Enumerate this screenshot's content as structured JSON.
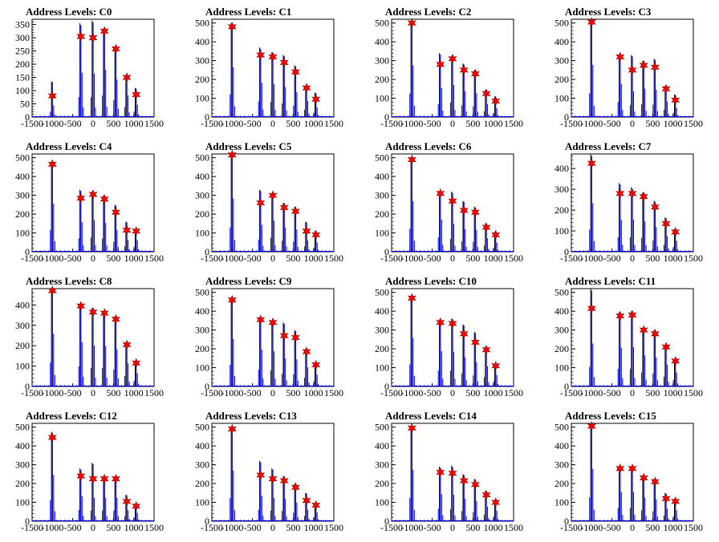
{
  "chart_data": [
    {
      "type": "bar",
      "title": "Address Levels: C0",
      "xlim": [
        -1500,
        1500
      ],
      "ylim": [
        0,
        370
      ],
      "yticks": [
        0,
        50,
        100,
        150,
        200,
        250,
        300,
        350
      ],
      "xticks": [
        -1500,
        -1000,
        -500,
        0,
        500,
        1000,
        1500
      ],
      "x": [
        -1000,
        -300,
        0,
        280,
        560,
        830,
        1060
      ],
      "values": [
        80,
        305,
        300,
        325,
        258,
        150,
        85
      ],
      "spike_max": [
        135,
        355,
        365,
        325,
        262,
        155,
        110
      ]
    },
    {
      "type": "bar",
      "title": "Address Levels: C1",
      "xlim": [
        -1500,
        1500
      ],
      "ylim": [
        0,
        520
      ],
      "yticks": [
        0,
        100,
        200,
        300,
        400,
        500
      ],
      "xticks": [
        -1500,
        -1000,
        -500,
        0,
        500,
        1000,
        1500
      ],
      "x": [
        -1000,
        -300,
        0,
        280,
        560,
        830,
        1060
      ],
      "values": [
        480,
        330,
        320,
        290,
        240,
        155,
        95
      ],
      "spike_max": [
        500,
        370,
        345,
        330,
        275,
        165,
        130
      ]
    },
    {
      "type": "bar",
      "title": "Address Levels: C2",
      "xlim": [
        -1500,
        1500
      ],
      "ylim": [
        0,
        520
      ],
      "yticks": [
        0,
        100,
        200,
        300,
        400,
        500
      ],
      "xticks": [
        -1500,
        -1000,
        -500,
        0,
        500,
        1000,
        1500
      ],
      "x": [
        -1000,
        -300,
        0,
        280,
        560,
        830,
        1060
      ],
      "values": [
        500,
        280,
        310,
        250,
        230,
        125,
        85
      ],
      "spike_max": [
        505,
        340,
        325,
        285,
        250,
        145,
        110
      ]
    },
    {
      "type": "bar",
      "title": "Address Levels: C3",
      "xlim": [
        -1500,
        1500
      ],
      "ylim": [
        0,
        520
      ],
      "yticks": [
        0,
        100,
        200,
        300,
        400,
        500
      ],
      "xticks": [
        -1500,
        -1000,
        -500,
        0,
        500,
        1000,
        1500
      ],
      "x": [
        -1000,
        -300,
        0,
        280,
        560,
        830,
        1060
      ],
      "values": [
        505,
        320,
        250,
        275,
        265,
        150,
        90
      ],
      "spike_max": [
        510,
        330,
        330,
        300,
        310,
        165,
        120
      ]
    },
    {
      "type": "bar",
      "title": "Address Levels: C4",
      "xlim": [
        -1500,
        1500
      ],
      "ylim": [
        0,
        520
      ],
      "yticks": [
        0,
        100,
        200,
        300,
        400,
        500
      ],
      "xticks": [
        -1500,
        -1000,
        -500,
        0,
        500,
        1000,
        1500
      ],
      "x": [
        -1000,
        -300,
        0,
        280,
        560,
        830,
        1060
      ],
      "values": [
        465,
        285,
        305,
        280,
        210,
        115,
        110
      ],
      "spike_max": [
        470,
        330,
        320,
        300,
        250,
        160,
        120
      ]
    },
    {
      "type": "bar",
      "title": "Address Levels: C5",
      "xlim": [
        -1500,
        1500
      ],
      "ylim": [
        0,
        520
      ],
      "yticks": [
        0,
        100,
        200,
        300,
        400,
        500
      ],
      "xticks": [
        -1500,
        -1000,
        -500,
        0,
        500,
        1000,
        1500
      ],
      "x": [
        -1000,
        -300,
        0,
        280,
        560,
        830,
        1060
      ],
      "values": [
        515,
        260,
        300,
        235,
        215,
        110,
        90
      ],
      "spike_max": [
        520,
        330,
        310,
        260,
        240,
        160,
        110
      ]
    },
    {
      "type": "bar",
      "title": "Address Levels: C6",
      "xlim": [
        -1500,
        1500
      ],
      "ylim": [
        0,
        520
      ],
      "yticks": [
        0,
        100,
        200,
        300,
        400,
        500
      ],
      "xticks": [
        -1500,
        -1000,
        -500,
        0,
        500,
        1000,
        1500
      ],
      "x": [
        -1000,
        -300,
        0,
        280,
        560,
        830,
        1060
      ],
      "values": [
        490,
        310,
        270,
        220,
        210,
        130,
        90
      ],
      "spike_max": [
        500,
        320,
        320,
        270,
        240,
        150,
        105
      ]
    },
    {
      "type": "bar",
      "title": "Address Levels: C7",
      "xlim": [
        -1500,
        1500
      ],
      "ylim": [
        0,
        470
      ],
      "yticks": [
        0,
        100,
        200,
        300,
        400
      ],
      "xticks": [
        -1500,
        -1000,
        -500,
        0,
        500,
        1000,
        1500
      ],
      "x": [
        -1000,
        -300,
        0,
        280,
        560,
        830,
        1060
      ],
      "values": [
        425,
        280,
        280,
        265,
        215,
        135,
        95
      ],
      "spike_max": [
        470,
        330,
        310,
        285,
        245,
        165,
        110
      ]
    },
    {
      "type": "bar",
      "title": "Address Levels: C8",
      "xlim": [
        -1500,
        1500
      ],
      "ylim": [
        0,
        480
      ],
      "yticks": [
        0,
        100,
        200,
        300,
        400
      ],
      "xticks": [
        -1500,
        -1000,
        -500,
        0,
        500,
        1000,
        1500
      ],
      "x": [
        -1000,
        -300,
        0,
        280,
        560,
        830,
        1060
      ],
      "values": [
        470,
        395,
        365,
        360,
        330,
        205,
        115
      ],
      "spike_max": [
        475,
        400,
        385,
        360,
        345,
        210,
        120
      ]
    },
    {
      "type": "bar",
      "title": "Address Levels: C9",
      "xlim": [
        -1500,
        1500
      ],
      "ylim": [
        0,
        520
      ],
      "yticks": [
        0,
        100,
        200,
        300,
        400,
        500
      ],
      "xticks": [
        -1500,
        -1000,
        -500,
        0,
        500,
        1000,
        1500
      ],
      "x": [
        -1000,
        -300,
        0,
        280,
        560,
        830,
        1060
      ],
      "values": [
        460,
        355,
        340,
        270,
        260,
        185,
        115
      ],
      "spike_max": [
        470,
        360,
        350,
        340,
        300,
        200,
        125
      ]
    },
    {
      "type": "bar",
      "title": "Address Levels: C10",
      "xlim": [
        -1500,
        1500
      ],
      "ylim": [
        0,
        520
      ],
      "yticks": [
        0,
        100,
        200,
        300,
        400,
        500
      ],
      "xticks": [
        -1500,
        -1000,
        -500,
        0,
        500,
        1000,
        1500
      ],
      "x": [
        -1000,
        -300,
        0,
        280,
        560,
        830,
        1060
      ],
      "values": [
        470,
        340,
        335,
        280,
        235,
        195,
        110
      ],
      "spike_max": [
        475,
        355,
        360,
        330,
        290,
        210,
        120
      ]
    },
    {
      "type": "bar",
      "title": "Address Levels: C11",
      "xlim": [
        -1500,
        1500
      ],
      "ylim": [
        0,
        520
      ],
      "yticks": [
        0,
        100,
        200,
        300,
        400,
        500
      ],
      "xticks": [
        -1500,
        -1000,
        -500,
        0,
        500,
        1000,
        1500
      ],
      "x": [
        -1000,
        -300,
        0,
        280,
        560,
        830,
        1060
      ],
      "values": [
        415,
        375,
        380,
        300,
        280,
        210,
        135
      ],
      "spike_max": [
        520,
        395,
        400,
        310,
        300,
        215,
        140
      ]
    },
    {
      "type": "bar",
      "title": "Address Levels: C12",
      "xlim": [
        -1500,
        1500
      ],
      "ylim": [
        0,
        520
      ],
      "yticks": [
        0,
        100,
        200,
        300,
        400,
        500
      ],
      "xticks": [
        -1500,
        -1000,
        -500,
        0,
        500,
        1000,
        1500
      ],
      "x": [
        -1000,
        -300,
        0,
        280,
        560,
        830,
        1060
      ],
      "values": [
        445,
        240,
        225,
        225,
        225,
        105,
        80
      ],
      "spike_max": [
        475,
        280,
        310,
        240,
        235,
        140,
        90
      ]
    },
    {
      "type": "bar",
      "title": "Address Levels: C13",
      "xlim": [
        -1500,
        1500
      ],
      "ylim": [
        0,
        520
      ],
      "yticks": [
        0,
        100,
        200,
        300,
        400,
        500
      ],
      "xticks": [
        -1500,
        -1000,
        -500,
        0,
        500,
        1000,
        1500
      ],
      "x": [
        -1000,
        -300,
        0,
        280,
        560,
        830,
        1060
      ],
      "values": [
        490,
        245,
        225,
        215,
        180,
        110,
        85
      ],
      "spike_max": [
        500,
        320,
        280,
        240,
        200,
        150,
        95
      ]
    },
    {
      "type": "bar",
      "title": "Address Levels: C14",
      "xlim": [
        -1500,
        1500
      ],
      "ylim": [
        0,
        520
      ],
      "yticks": [
        0,
        100,
        200,
        300,
        400,
        500
      ],
      "xticks": [
        -1500,
        -1000,
        -500,
        0,
        500,
        1000,
        1500
      ],
      "x": [
        -1000,
        -300,
        0,
        280,
        560,
        830,
        1060
      ],
      "values": [
        495,
        260,
        255,
        215,
        195,
        140,
        100
      ],
      "spike_max": [
        500,
        290,
        295,
        250,
        225,
        160,
        105
      ]
    },
    {
      "type": "bar",
      "title": "Address Levels: C15",
      "xlim": [
        -1500,
        1500
      ],
      "ylim": [
        0,
        520
      ],
      "yticks": [
        0,
        100,
        200,
        300,
        400,
        500
      ],
      "xticks": [
        -1500,
        -1000,
        -500,
        0,
        500,
        1000,
        1500
      ],
      "x": [
        -1000,
        -300,
        0,
        280,
        560,
        830,
        1060
      ],
      "values": [
        505,
        280,
        280,
        230,
        210,
        120,
        105
      ],
      "spike_max": [
        515,
        290,
        285,
        240,
        225,
        150,
        120
      ]
    }
  ],
  "colors": {
    "bar": "#0000ff",
    "spike": "#000000",
    "marker": "#ff0000"
  }
}
